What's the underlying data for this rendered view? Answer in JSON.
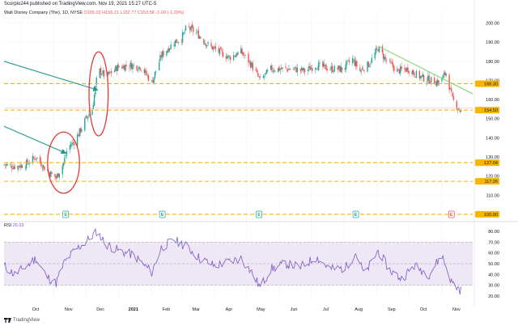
{
  "header": {
    "published_by": "Scorpio244 published on TradingView.com, Nov 19, 2021 15:27 UTC-5"
  },
  "legend": {
    "symbol": "Walt Disney Company (The), 1D, NYSE",
    "open": "O155.02",
    "high": "H155.21",
    "low": "L152.77",
    "close": "C153.58",
    "change": "-2.00 (-1.29%)"
  },
  "rsi_panel": {
    "label": "RSI",
    "value": "25.03",
    "line_color": "#7e57c2",
    "band_fill": "#ede7f6"
  },
  "footer": {
    "brand": "TradingView",
    "logo_icon": "tradingview-logo-icon"
  },
  "colors": {
    "up": "#26a69a",
    "down": "#ef5350",
    "level": "#f7b500",
    "arrow": "#22998e",
    "circle": "#e53935",
    "trendline": "#7cd36c"
  },
  "chart_data": [
    {
      "type": "candlestick",
      "y_axis_labels": [
        "200.00",
        "190.00",
        "180.00",
        "170.00",
        "160.00",
        "150.00",
        "140.00",
        "130.00",
        "120.00",
        "110.00",
        "100.00"
      ],
      "ylim": [
        97,
        207
      ],
      "x_axis_labels": [
        "Oct",
        "Nov",
        "Dec",
        "2021",
        "Feb",
        "Mar",
        "Apr",
        "May",
        "Jun",
        "Jul",
        "Aug",
        "Sep",
        "Oct",
        "Nov"
      ],
      "x_months": [
        "2020-10",
        "2020-11",
        "2020-12",
        "2021-01",
        "2021-02",
        "2021-03",
        "2021-04",
        "2021-05",
        "2021-06",
        "2021-07",
        "2021-08",
        "2021-09",
        "2021-10",
        "2021-11"
      ],
      "xlim": [
        "2020-09-15",
        "2021-11-30"
      ],
      "close_path": [
        [
          "2020-09-15",
          126
        ],
        [
          "2020-09-25",
          125
        ],
        [
          "2020-10-05",
          126
        ],
        [
          "2020-10-15",
          130
        ],
        [
          "2020-10-25",
          123
        ],
        [
          "2020-11-03",
          119
        ],
        [
          "2020-11-10",
          127
        ],
        [
          "2020-11-14",
          135
        ],
        [
          "2020-11-20",
          138
        ],
        [
          "2020-11-26",
          144
        ],
        [
          "2020-12-01",
          150
        ],
        [
          "2020-12-07",
          155
        ],
        [
          "2020-12-11",
          170
        ],
        [
          "2020-12-14",
          175
        ],
        [
          "2020-12-20",
          172
        ],
        [
          "2020-12-31",
          177
        ],
        [
          "2021-01-12",
          178
        ],
        [
          "2021-01-22",
          177
        ],
        [
          "2021-02-01",
          169
        ],
        [
          "2021-02-10",
          183
        ],
        [
          "2021-02-22",
          190
        ],
        [
          "2021-03-01",
          192
        ],
        [
          "2021-03-06",
          198
        ],
        [
          "2021-03-15",
          195
        ],
        [
          "2021-03-25",
          189
        ],
        [
          "2021-04-05",
          185
        ],
        [
          "2021-04-15",
          182
        ],
        [
          "2021-04-26",
          185
        ],
        [
          "2021-05-06",
          178
        ],
        [
          "2021-05-14",
          170
        ],
        [
          "2021-05-24",
          176
        ],
        [
          "2021-06-03",
          176
        ],
        [
          "2021-06-14",
          176
        ],
        [
          "2021-06-25",
          175
        ],
        [
          "2021-07-06",
          178
        ],
        [
          "2021-07-19",
          176
        ],
        [
          "2021-07-30",
          176
        ],
        [
          "2021-08-09",
          181
        ],
        [
          "2021-08-16",
          175
        ],
        [
          "2021-08-25",
          179
        ],
        [
          "2021-09-02",
          187
        ],
        [
          "2021-09-09",
          181
        ],
        [
          "2021-09-20",
          175
        ],
        [
          "2021-09-30",
          176
        ],
        [
          "2021-10-11",
          172
        ],
        [
          "2021-10-22",
          170
        ],
        [
          "2021-10-29",
          169
        ],
        [
          "2021-11-05",
          174
        ],
        [
          "2021-11-11",
          160
        ],
        [
          "2021-11-19",
          153.58
        ]
      ],
      "horizontal_levels": [
        {
          "value": 168.3,
          "label": "168.30"
        },
        {
          "value": 154.5,
          "label": "154.50"
        },
        {
          "value": 127.0,
          "label": "127.04"
        },
        {
          "value": 117.26,
          "label": "117.26"
        },
        {
          "value": 100.0,
          "label": "100.00"
        }
      ],
      "reference_line": 155.5,
      "trendline": [
        [
          "2021-09-02",
          188
        ],
        [
          "2021-11-30",
          163
        ]
      ],
      "arrows": [
        {
          "from": [
            "2020-09-15",
            146
          ],
          "to": [
            "2020-11-12",
            132
          ]
        },
        {
          "from": [
            "2020-09-15",
            180
          ],
          "to": [
            "2020-12-12",
            165
          ]
        }
      ],
      "circles": [
        {
          "center": [
            "2020-11-10",
            127
          ],
          "rx_days": 15,
          "ry": 16
        },
        {
          "center": [
            "2020-12-13",
            163
          ],
          "rx_days": 9,
          "ry": 22
        }
      ],
      "earnings_markers": [
        {
          "date": "2020-11-12",
          "label": "E"
        },
        {
          "date": "2021-02-11",
          "label": "E"
        },
        {
          "date": "2021-05-13",
          "label": "E"
        },
        {
          "date": "2021-08-12",
          "label": "E"
        },
        {
          "date": "2021-11-10",
          "label": "E"
        }
      ]
    },
    {
      "type": "line",
      "name": "RSI",
      "y_axis_labels": [
        "80.00",
        "70.00",
        "60.00",
        "50.00",
        "40.00",
        "30.00",
        "20.00"
      ],
      "ylim": [
        17,
        83
      ],
      "band": [
        30,
        70
      ],
      "midline": 50,
      "path": [
        [
          "2020-09-15",
          48
        ],
        [
          "2020-09-25",
          40
        ],
        [
          "2020-10-05",
          47
        ],
        [
          "2020-10-15",
          55
        ],
        [
          "2020-10-25",
          38
        ],
        [
          "2020-11-03",
          32
        ],
        [
          "2020-11-10",
          50
        ],
        [
          "2020-11-20",
          62
        ],
        [
          "2020-12-01",
          70
        ],
        [
          "2020-12-11",
          80
        ],
        [
          "2020-12-20",
          68
        ],
        [
          "2021-01-01",
          62
        ],
        [
          "2021-01-15",
          58
        ],
        [
          "2021-02-01",
          42
        ],
        [
          "2021-02-10",
          65
        ],
        [
          "2021-02-22",
          72
        ],
        [
          "2021-03-06",
          66
        ],
        [
          "2021-03-18",
          55
        ],
        [
          "2021-04-01",
          48
        ],
        [
          "2021-04-15",
          52
        ],
        [
          "2021-04-26",
          55
        ],
        [
          "2021-05-06",
          42
        ],
        [
          "2021-05-14",
          28
        ],
        [
          "2021-05-24",
          45
        ],
        [
          "2021-06-07",
          50
        ],
        [
          "2021-06-21",
          47
        ],
        [
          "2021-07-06",
          56
        ],
        [
          "2021-07-19",
          45
        ],
        [
          "2021-08-02",
          46
        ],
        [
          "2021-08-12",
          60
        ],
        [
          "2021-08-20",
          40
        ],
        [
          "2021-09-02",
          62
        ],
        [
          "2021-09-13",
          44
        ],
        [
          "2021-09-24",
          36
        ],
        [
          "2021-10-06",
          48
        ],
        [
          "2021-10-20",
          40
        ],
        [
          "2021-11-01",
          58
        ],
        [
          "2021-11-10",
          33
        ],
        [
          "2021-11-19",
          25.03
        ]
      ]
    }
  ]
}
